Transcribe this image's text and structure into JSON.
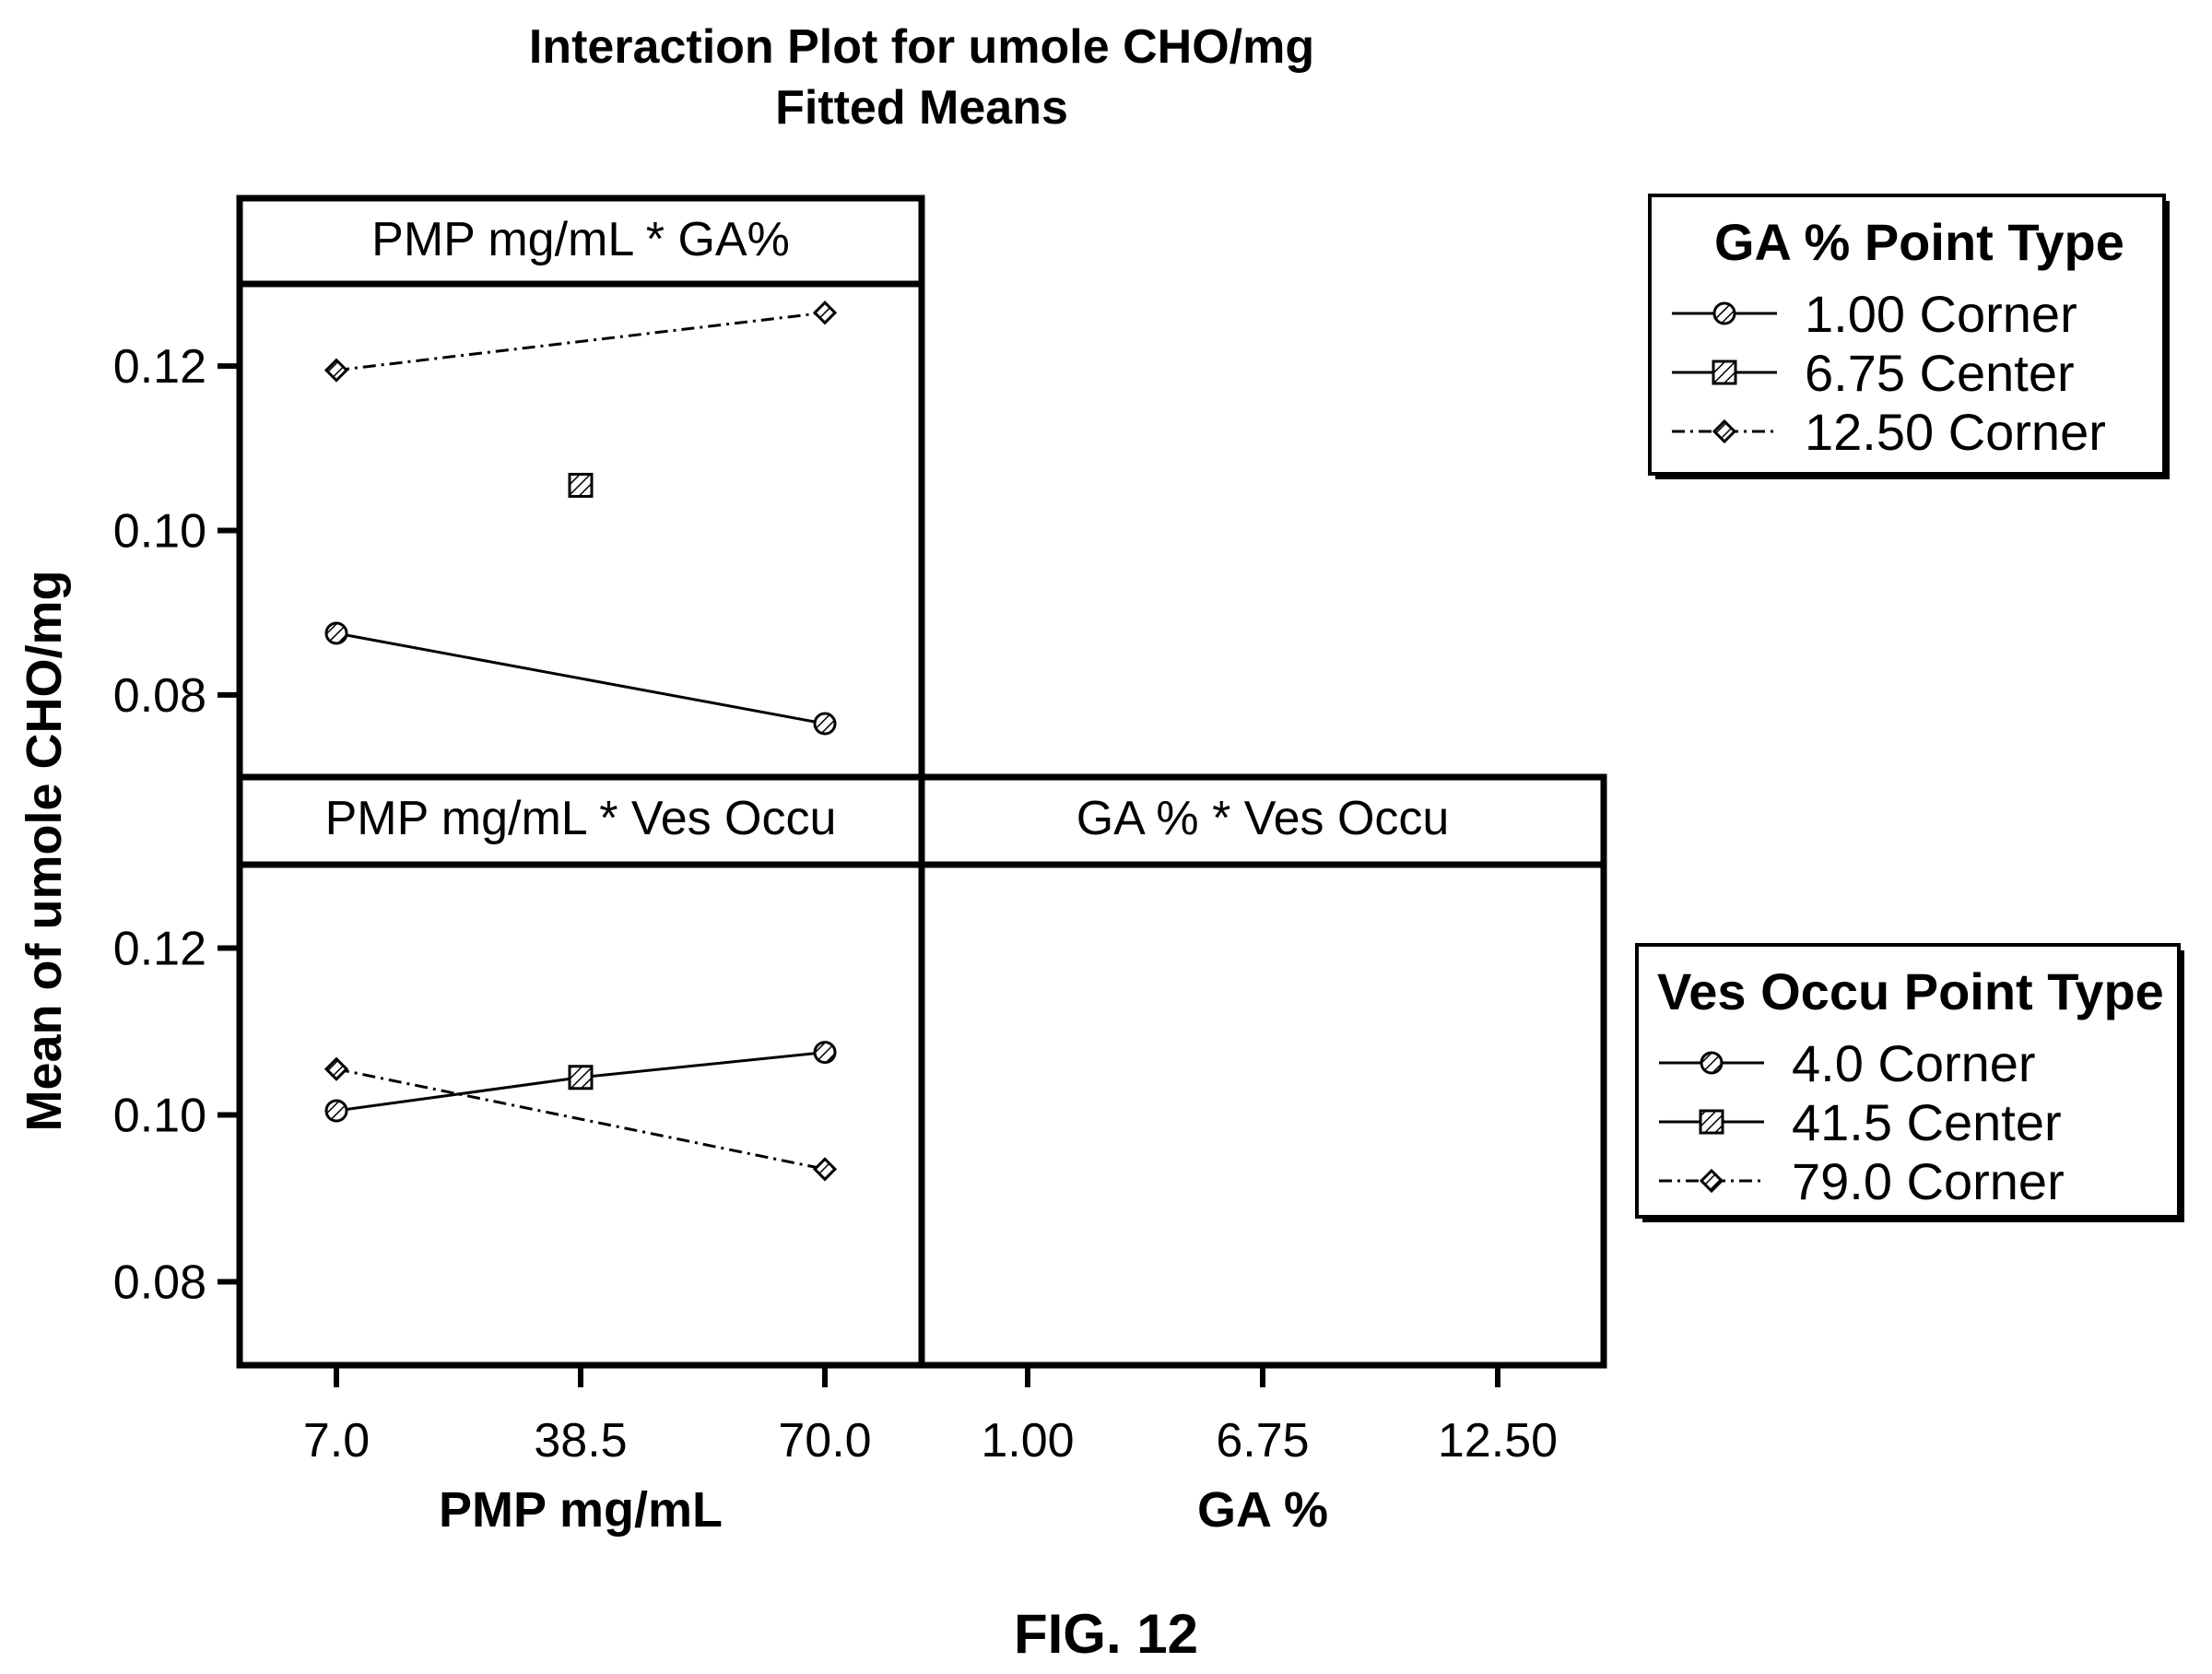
{
  "chart_data": {
    "type": "line",
    "title": "Interaction Plot for umole CHO/mg",
    "subtitle": "Fitted Means",
    "ylabel": "Mean of umole CHO/mg",
    "ylim": [
      0.07,
      0.13
    ],
    "yticks": [
      "0.08",
      "0.10",
      "0.12"
    ],
    "ytick_values": [
      0.08,
      0.1,
      0.12
    ],
    "caption": "FIG. 12",
    "x_axes": [
      {
        "label": "PMP mg/mL",
        "ticks": [
          "7.0",
          "38.5",
          "70.0"
        ]
      },
      {
        "label": "GA %",
        "ticks": [
          "1.00",
          "6.75",
          "12.50"
        ]
      }
    ],
    "panels": [
      {
        "strip": "PMP mg/mL * GA%",
        "x_axis": 0,
        "series": [
          {
            "name": "1.00 Corner",
            "marker": "circle",
            "dash": "solid",
            "x": [
              "7.0",
              "70.0"
            ],
            "values": [
              0.0875,
              0.0765
            ]
          },
          {
            "name": "6.75 Center",
            "marker": "square",
            "dash": "solid",
            "x": [
              "38.5"
            ],
            "values": [
              0.1055
            ]
          },
          {
            "name": "12.50 Corner",
            "marker": "diamond",
            "dash": "dashdot",
            "x": [
              "7.0",
              "70.0"
            ],
            "values": [
              0.1195,
              0.1265
            ]
          }
        ]
      },
      {
        "strip": "PMP mg/mL * Ves Occu",
        "x_axis": 0,
        "series": [
          {
            "name": "4.0 Corner",
            "marker": "circle",
            "dash": "solid",
            "x": [
              "7.0",
              "38.5",
              "70.0"
            ],
            "values": [
              0.1005,
              0.1045,
              0.1075
            ]
          },
          {
            "name": "41.5 Center",
            "marker": "square",
            "dash": "solid",
            "x": [
              "38.5"
            ],
            "values": [
              0.1045
            ]
          },
          {
            "name": "79.0 Corner",
            "marker": "diamond",
            "dash": "dashdot",
            "x": [
              "7.0",
              "70.0"
            ],
            "values": [
              0.1055,
              0.0935
            ]
          }
        ]
      },
      {
        "strip": "GA % * Ves Occu",
        "x_axis": 1,
        "series": []
      }
    ],
    "legends": [
      {
        "title": "GA % Point Type",
        "entries": [
          {
            "label": "1.00 Corner",
            "marker": "circle",
            "dash": "solid"
          },
          {
            "label": "6.75 Center",
            "marker": "square",
            "dash": "solid"
          },
          {
            "label": "12.50 Corner",
            "marker": "diamond",
            "dash": "dashdot"
          }
        ]
      },
      {
        "title": "Ves Occu Point Type",
        "entries": [
          {
            "label": "4.0 Corner",
            "marker": "circle",
            "dash": "solid"
          },
          {
            "label": "41.5 Center",
            "marker": "square",
            "dash": "solid"
          },
          {
            "label": "79.0 Corner",
            "marker": "diamond",
            "dash": "dashdot"
          }
        ]
      }
    ],
    "grid": false,
    "colors": {
      "ink": "#000000",
      "background": "#ffffff"
    }
  }
}
